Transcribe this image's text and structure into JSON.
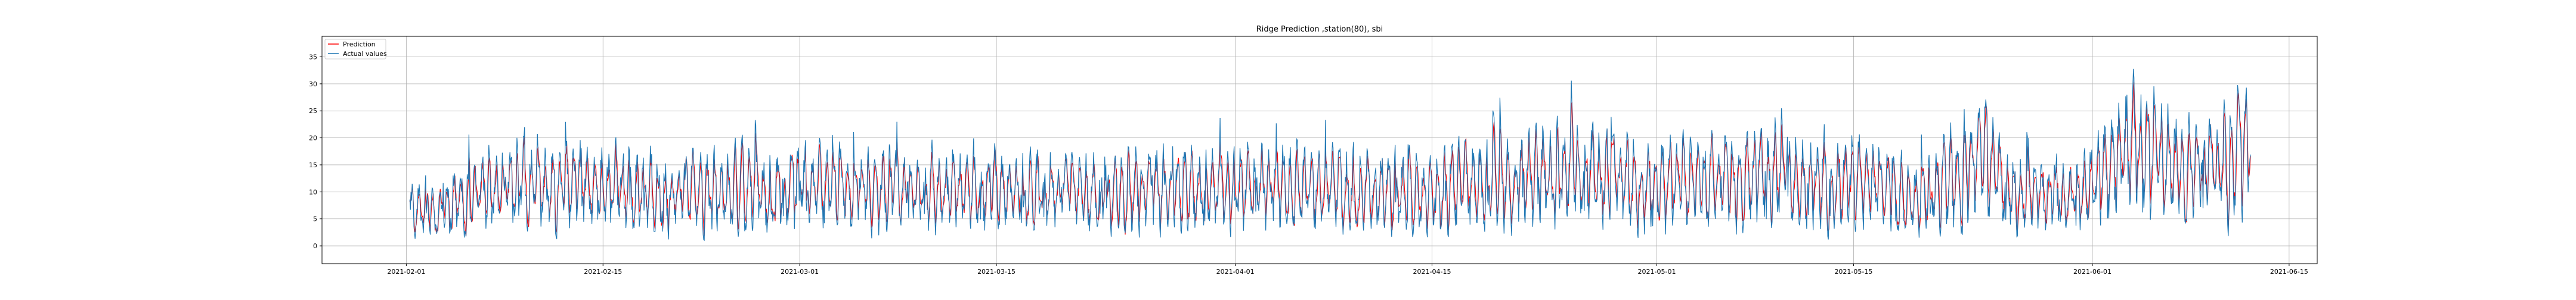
{
  "chart_data": {
    "type": "line",
    "title": "Ridge Prediction ,station(80), sbi",
    "xlabel": "",
    "ylabel": "",
    "x_range": [
      "2021-01-26",
      "2021-06-17"
    ],
    "ylim": [
      -3.3,
      38.8
    ],
    "grid": true,
    "legend_position": "top-left",
    "x_ticks": [
      "2021-02-01",
      "2021-02-15",
      "2021-03-01",
      "2021-03-15",
      "2021-04-01",
      "2021-04-15",
      "2021-05-01",
      "2021-05-15",
      "2021-06-01",
      "2021-06-15"
    ],
    "y_ticks": [
      0,
      5,
      10,
      15,
      20,
      25,
      30,
      35
    ],
    "data_start": "2021-02-01",
    "data_end": "2021-06-12",
    "daily_anchors": [
      {
        "date": "2021-02-01",
        "value": 6
      },
      {
        "date": "2021-02-10",
        "value": 12
      },
      {
        "date": "2021-02-20",
        "value": 10
      },
      {
        "date": "2021-03-01",
        "value": 11
      },
      {
        "date": "2021-03-15",
        "value": 10
      },
      {
        "date": "2021-04-01",
        "value": 11
      },
      {
        "date": "2021-04-15",
        "value": 10
      },
      {
        "date": "2021-04-25",
        "value": 14
      },
      {
        "date": "2021-05-01",
        "value": 11
      },
      {
        "date": "2021-05-10",
        "value": 14
      },
      {
        "date": "2021-05-20",
        "value": 9
      },
      {
        "date": "2021-05-24",
        "value": 17
      },
      {
        "date": "2021-05-27",
        "value": 9
      },
      {
        "date": "2021-06-01",
        "value": 12
      },
      {
        "date": "2021-06-04",
        "value": 20
      },
      {
        "date": "2021-06-07",
        "value": 13
      },
      {
        "date": "2021-06-12",
        "value": 18
      }
    ],
    "series": [
      {
        "name": "Prediction",
        "color": "#ff0000"
      },
      {
        "name": "Actual values",
        "color": "#1f77b4"
      }
    ]
  }
}
